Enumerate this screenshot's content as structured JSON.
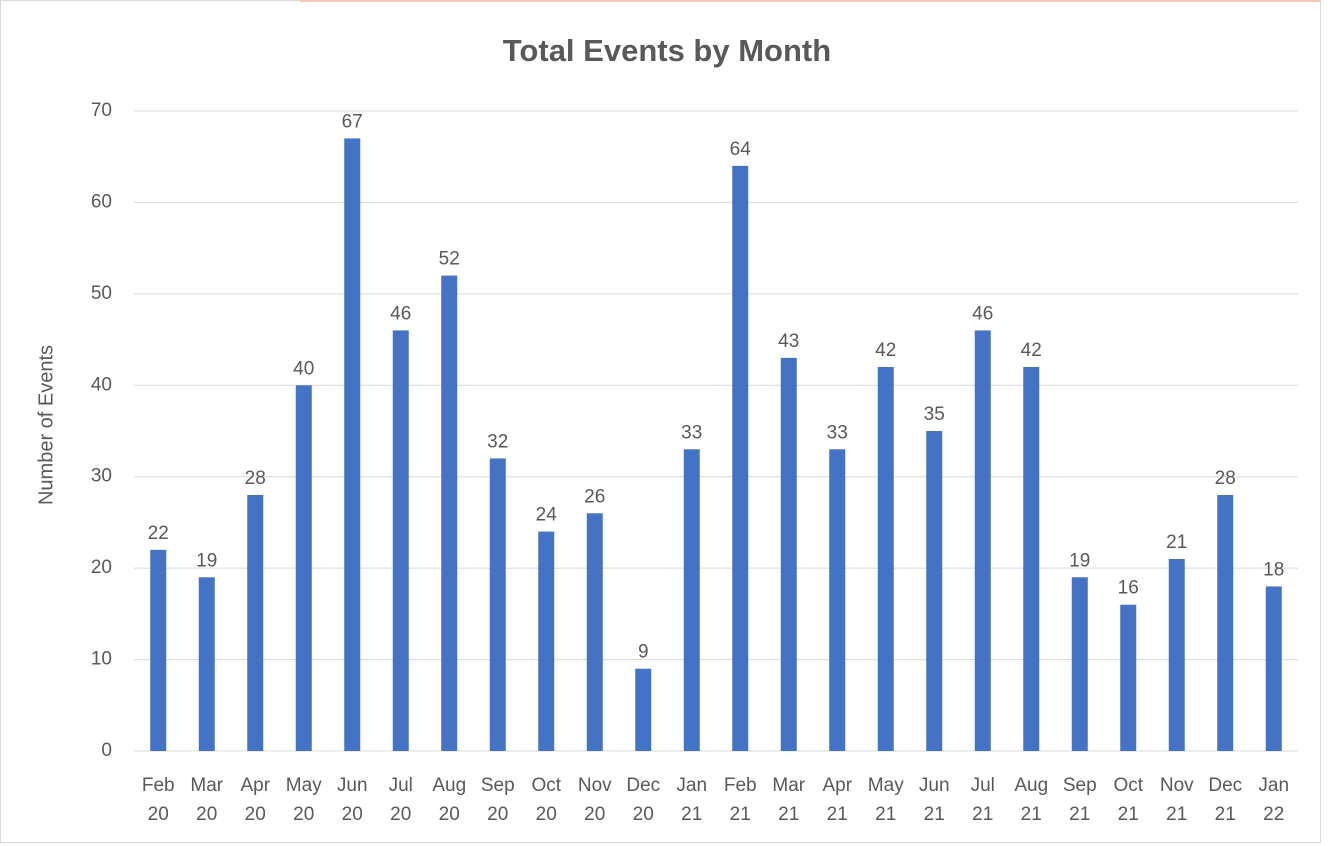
{
  "chart_data": {
    "type": "bar",
    "title": "Total Events by Month",
    "y_label": "Number of Events",
    "categories": [
      "Feb 20",
      "Mar 20",
      "Apr 20",
      "May 20",
      "Jun 20",
      "Jul 20",
      "Aug 20",
      "Sep 20",
      "Oct 20",
      "Nov 20",
      "Dec 20",
      "Jan 21",
      "Feb 21",
      "Mar 21",
      "Apr 21",
      "May 21",
      "Jun 21",
      "Jul 21",
      "Aug 21",
      "Sep 21",
      "Oct 21",
      "Nov 21",
      "Dec 21",
      "Jan 22"
    ],
    "values": [
      22,
      19,
      28,
      40,
      67,
      46,
      52,
      32,
      24,
      26,
      9,
      33,
      64,
      43,
      33,
      42,
      35,
      46,
      42,
      19,
      16,
      21,
      28,
      18
    ],
    "color": "#4472c4",
    "ylim": [
      0,
      70
    ],
    "yticks": [
      0,
      10,
      20,
      30,
      40,
      50,
      60,
      70
    ],
    "grid": true
  }
}
